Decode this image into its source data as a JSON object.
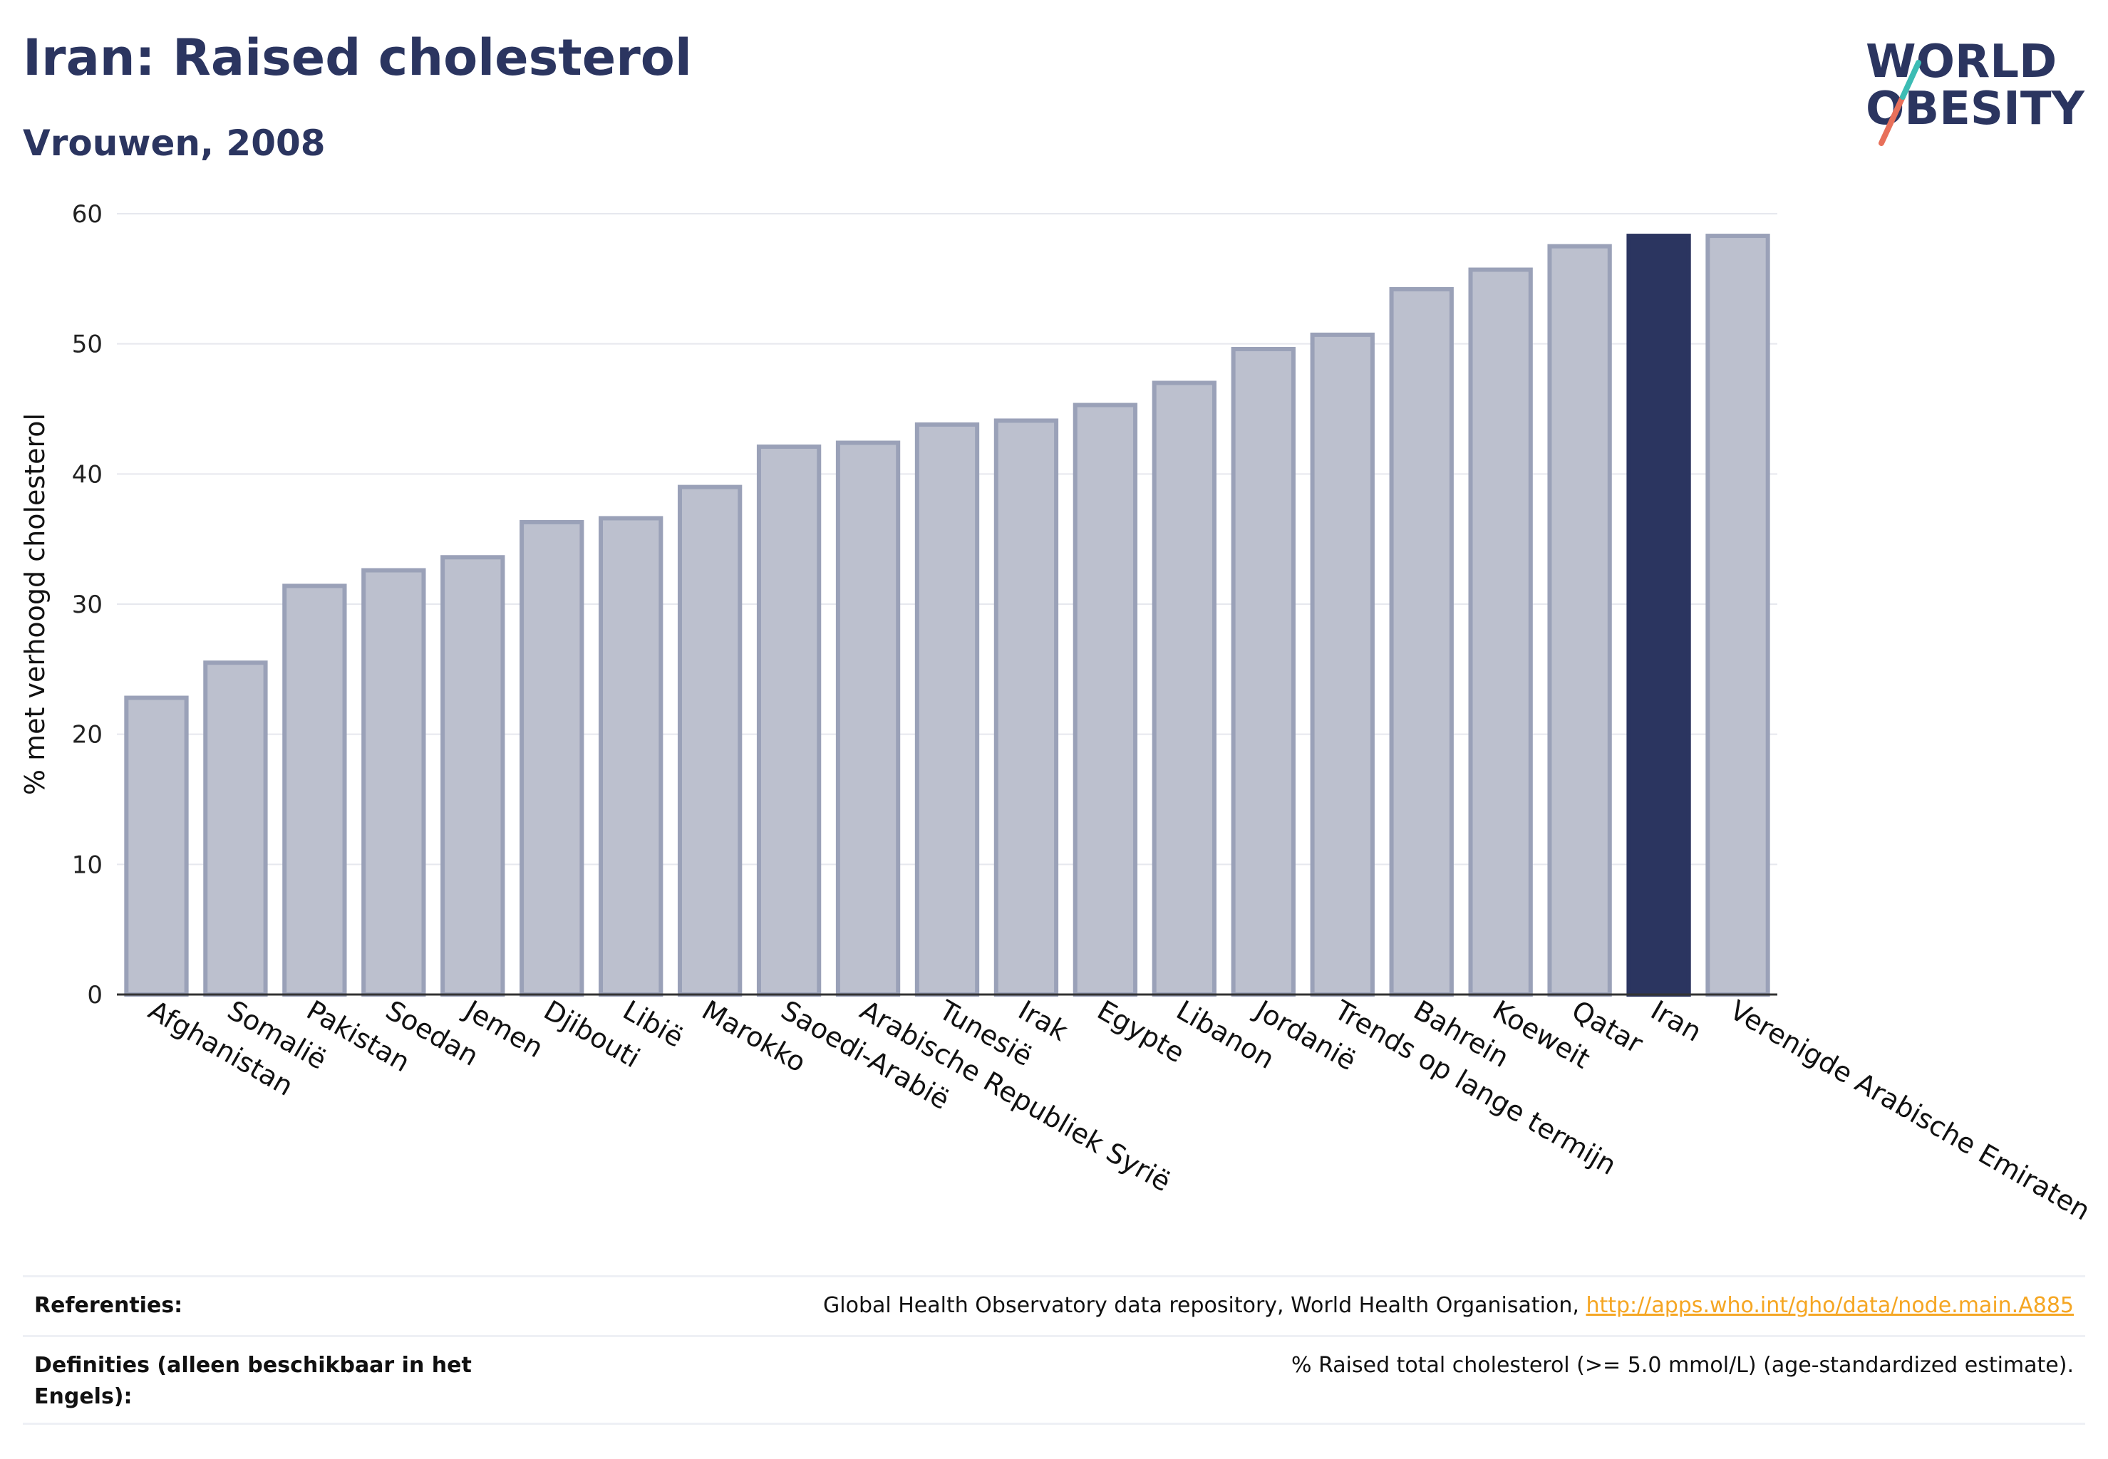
{
  "header": {
    "title": "Iran: Raised cholesterol",
    "subtitle": "Vrouwen, 2008"
  },
  "logo": {
    "line1": "WORLD",
    "line2": "OBESITY",
    "accent_colors": [
      "#3cbcb4",
      "#e8705a"
    ]
  },
  "colors": {
    "highlight": "#2b3560",
    "bar_fill": "#bcc0ce",
    "bar_stroke": "#9aa1b8",
    "link": "#f5a623",
    "text": "#2b3560"
  },
  "chart_data": {
    "type": "bar",
    "title": "Iran: Raised cholesterol",
    "subtitle": "Vrouwen, 2008",
    "xlabel": "",
    "ylabel": "% met verhoogd cholesterol",
    "ylim": [
      0,
      60
    ],
    "yticks": [
      0,
      10,
      20,
      30,
      40,
      50,
      60
    ],
    "grid": true,
    "highlight": "Iran",
    "categories": [
      "Afghanistan",
      "Somalië",
      "Pakistan",
      "Soedan",
      "Jemen",
      "Djibouti",
      "Libië",
      "Marokko",
      "Saoedi-Arabië",
      "Arabische Republiek Syrië",
      "Tunesië",
      "Irak",
      "Egypte",
      "Libanon",
      "Jordanië",
      "Trends op lange termijn",
      "Bahrein",
      "Koeweit",
      "Qatar",
      "Iran",
      "Verenigde Arabische Emiraten"
    ],
    "values": [
      22.8,
      25.5,
      31.4,
      32.6,
      33.6,
      36.3,
      36.6,
      39.0,
      42.1,
      42.4,
      43.8,
      44.1,
      45.3,
      47.0,
      49.6,
      50.7,
      54.2,
      55.7,
      57.5,
      58.3,
      58.3
    ]
  },
  "references": {
    "label": "Referenties:",
    "text": "Global Health Observatory data repository, World Health Organisation, ",
    "link": "http://apps.who.int/gho/data/node.main.A885"
  },
  "definitions": {
    "label": "Definities (alleen beschikbaar in het Engels):",
    "text": "% Raised total cholesterol (>= 5.0 mmol/L) (age-standardized estimate)."
  }
}
